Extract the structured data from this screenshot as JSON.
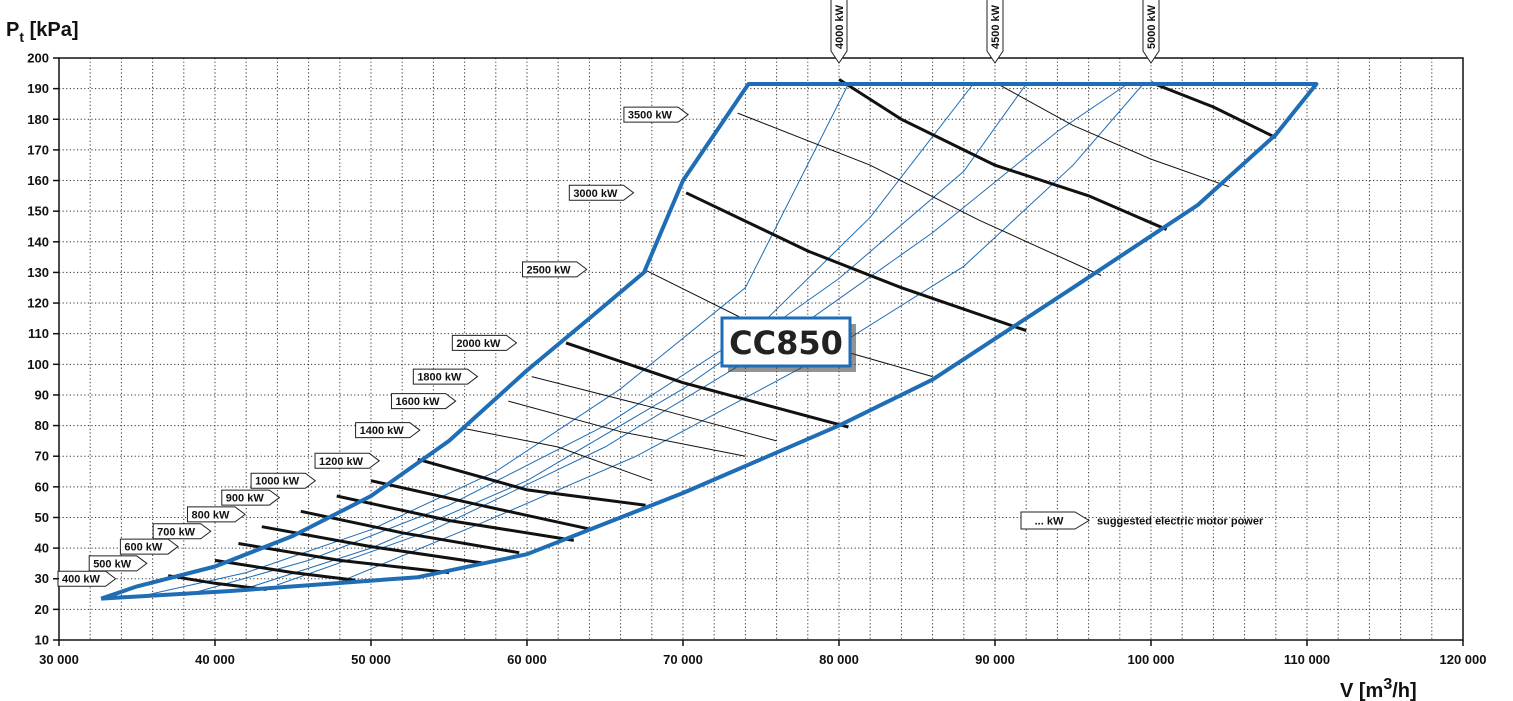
{
  "chart_data": {
    "type": "line",
    "model": "CC850",
    "ylabel_main": "P",
    "ylabel_sub": "t",
    "ylabel_unit": " [kPa]",
    "xlabel_main": "V [m",
    "xlabel_sup": "3",
    "xlabel_end": "/h]",
    "xlim": [
      30000,
      120000
    ],
    "ylim": [
      10,
      200
    ],
    "x_ticks": [
      30000,
      40000,
      50000,
      60000,
      70000,
      80000,
      90000,
      100000,
      110000,
      120000
    ],
    "x_tick_labels": [
      "30 000",
      "40 000",
      "50 000",
      "60 000",
      "70 000",
      "80 000",
      "90 000",
      "100 000",
      "110 000",
      "120 000"
    ],
    "y_ticks": [
      10,
      20,
      30,
      40,
      50,
      60,
      70,
      80,
      90,
      100,
      110,
      120,
      130,
      140,
      150,
      160,
      170,
      180,
      190,
      200
    ],
    "y_tick_labels": [
      "10",
      "20",
      "30",
      "40",
      "50",
      "60",
      "70",
      "80",
      "90",
      "100",
      "110",
      "120",
      "130",
      "140",
      "150",
      "160",
      "170",
      "180",
      "190",
      "200"
    ],
    "grid": true,
    "legend_note": {
      "label": "... kW",
      "text": "suggested electric motor power"
    },
    "colors": {
      "envelope": "#1f6db5",
      "speed_line": "#1f6db5",
      "power_bold": "#111111",
      "power_thin": "#111111",
      "grid": "#333333"
    },
    "envelope": [
      [
        32700,
        23.5
      ],
      [
        41000,
        26
      ],
      [
        53000,
        30.5
      ],
      [
        60000,
        38
      ],
      [
        70000,
        58
      ],
      [
        80000,
        80
      ],
      [
        86000,
        95
      ],
      [
        95000,
        125
      ],
      [
        103000,
        152
      ],
      [
        108000,
        175
      ],
      [
        110600,
        191.5
      ],
      [
        74200,
        191.5
      ],
      [
        70000,
        160
      ],
      [
        67500,
        130
      ],
      [
        64000,
        115
      ],
      [
        60000,
        98
      ],
      [
        55000,
        75
      ],
      [
        50000,
        57
      ],
      [
        45000,
        44
      ],
      [
        40000,
        34
      ],
      [
        35000,
        27.5
      ],
      [
        32700,
        23.5
      ]
    ],
    "speed_lines": [
      [
        [
          35000,
          24
        ],
        [
          42000,
          32
        ],
        [
          50000,
          46
        ],
        [
          58000,
          65
        ],
        [
          66000,
          92
        ],
        [
          74000,
          125
        ],
        [
          80600,
          191.5
        ]
      ],
      [
        [
          38000,
          24.5
        ],
        [
          46000,
          36
        ],
        [
          55000,
          54
        ],
        [
          65000,
          80
        ],
        [
          75000,
          113
        ],
        [
          82000,
          148
        ],
        [
          88600,
          191.5
        ]
      ],
      [
        [
          41500,
          26
        ],
        [
          50000,
          40
        ],
        [
          60000,
          62
        ],
        [
          70000,
          92
        ],
        [
          80000,
          128
        ],
        [
          88000,
          163
        ],
        [
          92000,
          191.5
        ]
      ],
      [
        [
          44000,
          28
        ],
        [
          54000,
          46
        ],
        [
          65000,
          73
        ],
        [
          76000,
          107
        ],
        [
          86000,
          143
        ],
        [
          94000,
          176
        ],
        [
          98500,
          191.5
        ]
      ],
      [
        [
          48000,
          29
        ],
        [
          57000,
          48
        ],
        [
          67000,
          70
        ],
        [
          78000,
          100
        ],
        [
          88000,
          132
        ],
        [
          95000,
          165
        ],
        [
          99500,
          191.5
        ]
      ]
    ],
    "power_lines": [
      {
        "label": "400 kW",
        "bold": true,
        "label_at": [
          33500,
          30
        ],
        "points": [
          [
            37000,
            31
          ],
          [
            40000,
            28.5
          ],
          [
            43300,
            26.5
          ]
        ]
      },
      {
        "label": "500 kW",
        "bold": true,
        "label_at": [
          35500,
          35
        ],
        "points": [
          [
            40000,
            36
          ],
          [
            45000,
            32
          ],
          [
            49000,
            29.5
          ]
        ]
      },
      {
        "label": "600 kW",
        "bold": true,
        "label_at": [
          37500,
          40.5
        ],
        "points": [
          [
            41500,
            41.5
          ],
          [
            48000,
            36
          ],
          [
            55000,
            32
          ]
        ]
      },
      {
        "label": "700 kW",
        "bold": true,
        "label_at": [
          39600,
          45.5
        ],
        "points": [
          [
            43000,
            47
          ],
          [
            50000,
            40.5
          ],
          [
            57300,
            35
          ]
        ]
      },
      {
        "label": "800 kW",
        "bold": true,
        "label_at": [
          41800,
          51
        ],
        "points": [
          [
            45500,
            52
          ],
          [
            52000,
            45
          ],
          [
            59500,
            38.5
          ]
        ]
      },
      {
        "label": "900 kW",
        "bold": true,
        "label_at": [
          44000,
          56.5
        ],
        "points": [
          [
            47800,
            57
          ],
          [
            55000,
            49
          ],
          [
            63000,
            42.5
          ]
        ]
      },
      {
        "label": "1000 kW",
        "bold": true,
        "label_at": [
          46300,
          62
        ],
        "points": [
          [
            50000,
            62
          ],
          [
            57000,
            54
          ],
          [
            64200,
            46
          ]
        ]
      },
      {
        "label": "1200 kW",
        "bold": true,
        "label_at": [
          50400,
          68.5
        ],
        "points": [
          [
            53000,
            69
          ],
          [
            60000,
            59
          ],
          [
            67600,
            54
          ]
        ]
      },
      {
        "label": "1400 kW",
        "bold": false,
        "label_at": [
          53000,
          78.5
        ],
        "points": [
          [
            56000,
            79
          ],
          [
            62000,
            73
          ],
          [
            68000,
            62
          ]
        ]
      },
      {
        "label": "1600 kW",
        "bold": false,
        "label_at": [
          55300,
          88
        ],
        "points": [
          [
            58800,
            88
          ],
          [
            66000,
            78
          ],
          [
            74000,
            70
          ]
        ]
      },
      {
        "label": "1800 kW",
        "bold": false,
        "label_at": [
          56700,
          96
        ],
        "points": [
          [
            60300,
            96
          ],
          [
            68000,
            86
          ],
          [
            76000,
            75
          ]
        ]
      },
      {
        "label": "2000 kW",
        "bold": true,
        "label_at": [
          59200,
          107
        ],
        "points": [
          [
            62500,
            107
          ],
          [
            70000,
            94
          ],
          [
            80600,
            79.5
          ]
        ]
      },
      {
        "label": "2500 kW",
        "bold": false,
        "label_at": [
          63700,
          131
        ],
        "points": [
          [
            67500,
            131
          ],
          [
            75000,
            112
          ],
          [
            86000,
            96
          ]
        ]
      },
      {
        "label": "3000 kW",
        "bold": true,
        "label_at": [
          66700,
          156
        ],
        "points": [
          [
            70200,
            156
          ],
          [
            78000,
            137
          ],
          [
            84000,
            125
          ],
          [
            92000,
            111
          ]
        ]
      },
      {
        "label": "3500 kW",
        "bold": false,
        "label_at": [
          70200,
          181.5
        ],
        "points": [
          [
            73500,
            182
          ],
          [
            82000,
            165
          ],
          [
            89000,
            147
          ],
          [
            96800,
            129
          ]
        ]
      },
      {
        "label": "4000 kW",
        "bold": true,
        "label_at": [
          80000,
          193
        ],
        "vertical": true,
        "points": [
          [
            80000,
            193
          ],
          [
            84000,
            180
          ],
          [
            90000,
            165
          ],
          [
            96000,
            155
          ],
          [
            101000,
            144
          ]
        ]
      },
      {
        "label": "4500 kW",
        "bold": false,
        "label_at": [
          90000,
          192
        ],
        "vertical": true,
        "points": [
          [
            90000,
            192
          ],
          [
            95000,
            178
          ],
          [
            100000,
            167
          ],
          [
            105000,
            158
          ]
        ]
      },
      {
        "label": "5000 kW",
        "bold": true,
        "label_at": [
          100000,
          192
        ],
        "vertical": true,
        "points": [
          [
            100000,
            192
          ],
          [
            104000,
            184
          ],
          [
            108000,
            174
          ]
        ]
      }
    ]
  }
}
